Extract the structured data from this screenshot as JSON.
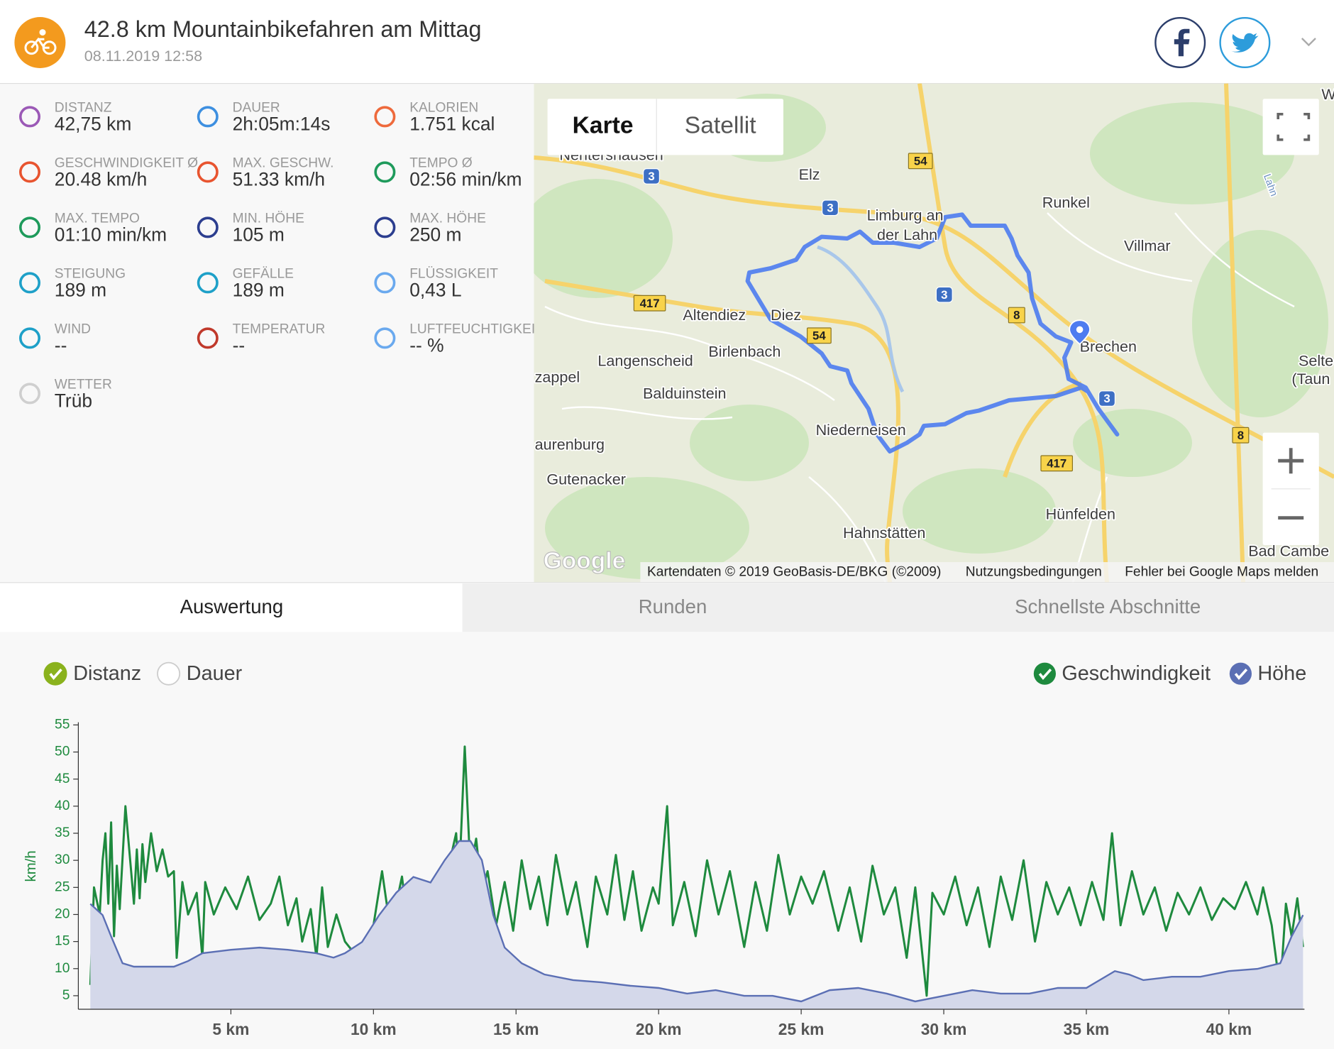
{
  "header": {
    "title": "42.8 km Mountainbikefahren am Mittag",
    "date": "08.11.2019 12:58"
  },
  "stats": [
    {
      "label": "DISTANZ",
      "value": "42,75 km"
    },
    {
      "label": "DAUER",
      "value": "2h:05m:14s"
    },
    {
      "label": "KALORIEN",
      "value": "1.751 kcal"
    },
    {
      "label": "GESCHWINDIGKEIT Ø",
      "value": "20.48 km/h"
    },
    {
      "label": "MAX. GESCHW.",
      "value": "51.33 km/h"
    },
    {
      "label": "TEMPO Ø",
      "value": "02:56 min/km"
    },
    {
      "label": "MAX. TEMPO",
      "value": "01:10 min/km"
    },
    {
      "label": "MIN. HÖHE",
      "value": "105 m"
    },
    {
      "label": "MAX. HÖHE",
      "value": "250 m"
    },
    {
      "label": "STEIGUNG",
      "value": "189 m"
    },
    {
      "label": "GEFÄLLE",
      "value": "189 m"
    },
    {
      "label": "FLÜSSIGKEIT",
      "value": "0,43 L"
    },
    {
      "label": "WIND",
      "value": "--"
    },
    {
      "label": "TEMPERATUR",
      "value": "--"
    },
    {
      "label": "LUFTFEUCHTIGKEIT",
      "value": "-- %"
    },
    {
      "label": "WETTER",
      "value": "Trüb"
    }
  ],
  "map": {
    "buttons": [
      "Karte",
      "Satellit"
    ],
    "labels": [
      {
        "text": "Nentershausen"
      },
      {
        "text": "Elz"
      },
      {
        "text": "Limburg an"
      },
      {
        "text": "der Lahn"
      },
      {
        "text": "Runkel"
      },
      {
        "text": "Villmar"
      },
      {
        "text": "Altendiez"
      },
      {
        "text": "Diez"
      },
      {
        "text": "Birlenbach"
      },
      {
        "text": "Langenscheid"
      },
      {
        "text": "Balduinstein"
      },
      {
        "text": "zappel"
      },
      {
        "text": "Brechen"
      },
      {
        "text": "Niederneisen"
      },
      {
        "text": "aurenburg"
      },
      {
        "text": "Gutenacker"
      },
      {
        "text": "Hahnstätten"
      },
      {
        "text": "Hünfelden"
      },
      {
        "text": "Selte"
      },
      {
        "text": "(Taun"
      },
      {
        "text": "Bad Cambe"
      },
      {
        "text": "W"
      },
      {
        "text": "Lahn"
      }
    ],
    "shields": [
      "3",
      "3",
      "3",
      "3",
      "54",
      "54",
      "417",
      "417",
      "8",
      "8"
    ],
    "footer": {
      "logo": "Google",
      "attribution": "Kartendaten © 2019 GeoBasis-DE/BKG (©2009)",
      "terms": "Nutzungsbedingungen",
      "report": "Fehler bei Google Maps melden"
    }
  },
  "tabs": [
    "Auswertung",
    "Runden",
    "Schnellste Abschnitte"
  ],
  "chart_data": {
    "type": "line",
    "y_label": "km/h",
    "x_options": [
      {
        "label": "Distanz",
        "checked": true
      },
      {
        "label": "Dauer",
        "checked": false
      }
    ],
    "xlim": [
      -0.35,
      42.65
    ],
    "xticks": [
      {
        "value": 5,
        "label": "5 km"
      },
      {
        "value": 10,
        "label": "10 km"
      },
      {
        "value": 15,
        "label": "15 km"
      },
      {
        "value": 20,
        "label": "20 km"
      },
      {
        "value": 25,
        "label": "25 km"
      },
      {
        "value": 30,
        "label": "30 km"
      },
      {
        "value": 35,
        "label": "35 km"
      },
      {
        "value": 40,
        "label": "40 km"
      }
    ],
    "ylim": [
      2.5,
      55.5
    ],
    "yticks": [
      5,
      10,
      15,
      20,
      25,
      30,
      35,
      40,
      45,
      50,
      55
    ],
    "y2lim": [
      98,
      354
    ],
    "series": [
      {
        "name": "Geschwindigkeit",
        "color": "#1e8a3e",
        "x": [
          0.07,
          0.2,
          0.4,
          0.5,
          0.6,
          0.7,
          0.8,
          0.9,
          1.0,
          1.1,
          1.3,
          1.5,
          1.6,
          1.7,
          1.8,
          1.9,
          2.0,
          2.2,
          2.4,
          2.6,
          2.8,
          3.0,
          3.1,
          3.3,
          3.5,
          3.8,
          4.0,
          4.1,
          4.4,
          4.8,
          5.2,
          5.6,
          6.0,
          6.4,
          6.7,
          7.0,
          7.3,
          7.5,
          7.8,
          8.0,
          8.2,
          8.4,
          8.7,
          9.0,
          9.3,
          9.7,
          10.0,
          10.3,
          10.6,
          11.0,
          11.3,
          11.6,
          11.9,
          12.0,
          12.3,
          12.6,
          12.9,
          13.0,
          13.2,
          13.4,
          13.6,
          13.8,
          14.0,
          14.3,
          14.6,
          14.9,
          15.2,
          15.5,
          15.8,
          16.1,
          16.4,
          16.8,
          17.1,
          17.5,
          17.8,
          18.2,
          18.5,
          18.8,
          19.1,
          19.4,
          19.8,
          20.0,
          20.3,
          20.5,
          20.9,
          21.3,
          21.7,
          22.1,
          22.5,
          23.0,
          23.4,
          23.8,
          24.2,
          24.6,
          25.0,
          25.4,
          25.8,
          26.3,
          26.7,
          27.1,
          27.5,
          27.9,
          28.3,
          28.7,
          29.0,
          29.4,
          29.6,
          30.0,
          30.4,
          30.8,
          31.2,
          31.6,
          32.0,
          32.4,
          32.8,
          33.2,
          33.6,
          34.0,
          34.4,
          34.8,
          35.2,
          35.6,
          35.9,
          36.2,
          36.6,
          37.0,
          37.4,
          37.8,
          38.2,
          38.6,
          39.0,
          39.4,
          39.8,
          40.2,
          40.6,
          41.0,
          41.2,
          41.5,
          41.8,
          42.0,
          42.2,
          42.4,
          42.6
        ],
        "values": [
          7,
          25,
          20,
          30,
          35,
          22,
          37,
          16,
          29,
          21,
          40,
          28,
          22,
          32,
          23,
          33,
          26,
          35,
          28,
          32,
          27,
          28,
          12,
          26,
          20,
          24,
          12,
          26,
          20,
          25,
          21,
          27,
          19,
          22,
          27,
          18,
          23,
          15,
          21,
          12,
          25,
          14,
          20,
          15,
          13,
          12,
          18,
          28,
          17,
          27,
          14,
          25,
          16,
          21,
          15,
          28,
          35,
          26,
          51,
          28,
          34,
          24,
          28,
          18,
          26,
          17,
          30,
          21,
          27,
          18,
          31,
          20,
          26,
          14,
          27,
          20,
          31,
          19,
          28,
          17,
          25,
          22,
          40,
          18,
          26,
          16,
          30,
          20,
          28,
          14,
          26,
          17,
          31,
          20,
          27,
          22,
          28,
          17,
          25,
          15,
          29,
          20,
          25,
          12,
          25,
          5,
          24,
          20,
          27,
          18,
          25,
          14,
          27,
          19,
          30,
          15,
          26,
          20,
          25,
          18,
          26,
          19,
          35,
          18,
          28,
          20,
          25,
          17,
          24,
          20,
          25,
          19,
          23,
          21,
          26,
          20,
          25,
          18,
          6,
          22,
          16,
          23,
          14
        ]
      },
      {
        "name": "Höhe",
        "color": "#5b6fb4",
        "fill": "#d4d8ea",
        "axis": "y2",
        "x": [
          0.07,
          0.5,
          0.8,
          1.2,
          1.6,
          3.0,
          3.5,
          4.0,
          5.0,
          6.0,
          7.0,
          8.0,
          8.6,
          9.0,
          9.6,
          10.2,
          10.8,
          11.4,
          12.0,
          12.5,
          13.0,
          13.4,
          13.8,
          14.2,
          14.6,
          15.2,
          16,
          17,
          18,
          19,
          20,
          21,
          22,
          23,
          24,
          25,
          26,
          27,
          28,
          29,
          30,
          31,
          32,
          33,
          34,
          35,
          36,
          36.5,
          37,
          38,
          39,
          40,
          41,
          41.8,
          42.2,
          42.6
        ],
        "values": [
          192,
          182,
          163,
          139,
          136,
          136,
          141,
          148,
          151,
          153,
          151,
          148,
          144,
          148,
          158,
          182,
          202,
          216,
          211,
          231,
          248,
          248,
          231,
          182,
          153,
          139,
          129,
          124,
          122,
          119,
          117,
          112,
          115,
          110,
          110,
          105,
          115,
          117,
          112,
          105,
          110,
          115,
          112,
          112,
          117,
          117,
          132,
          129,
          124,
          127,
          127,
          132,
          134,
          139,
          163,
          182
        ]
      }
    ]
  }
}
